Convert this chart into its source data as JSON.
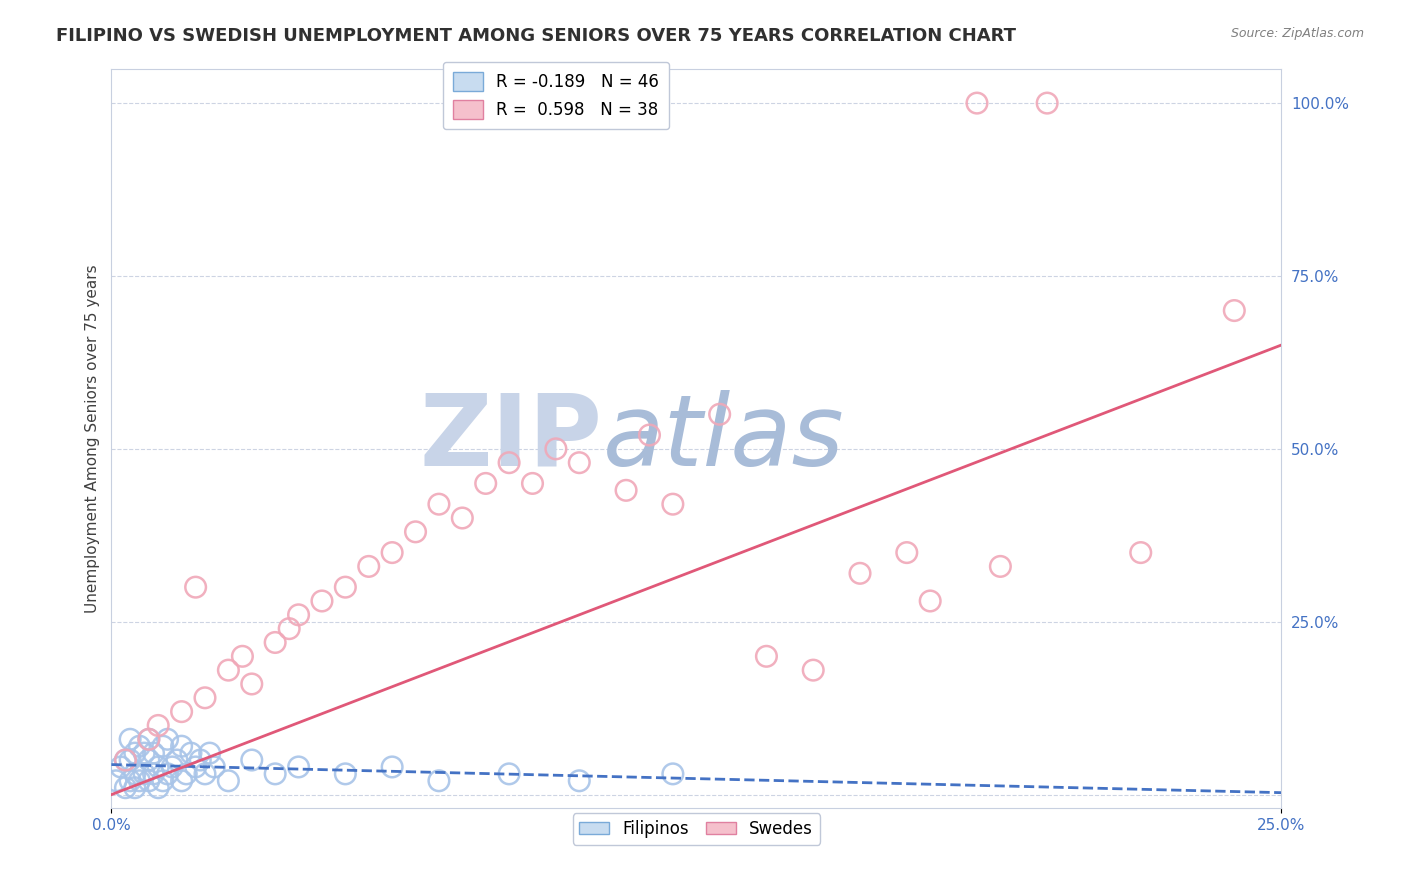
{
  "title": "FILIPINO VS SWEDISH UNEMPLOYMENT AMONG SENIORS OVER 75 YEARS CORRELATION CHART",
  "source": "Source: ZipAtlas.com",
  "ylabel": "Unemployment Among Seniors over 75 years",
  "xlim": [
    0,
    0.25
  ],
  "ylim": [
    -0.02,
    1.05
  ],
  "ytick_values": [
    0,
    0.25,
    0.5,
    0.75,
    1.0
  ],
  "ytick_labels": [
    "",
    "25.0%",
    "50.0%",
    "75.0%",
    "100.0%"
  ],
  "xtick_values": [
    0,
    0.25
  ],
  "xtick_labels": [
    "0.0%",
    "25.0%"
  ],
  "filipinos": {
    "color": "#a8c4e8",
    "line_color": "#4472c4",
    "x": [
      0.001,
      0.002,
      0.003,
      0.003,
      0.004,
      0.004,
      0.004,
      0.005,
      0.005,
      0.005,
      0.006,
      0.006,
      0.007,
      0.007,
      0.008,
      0.008,
      0.008,
      0.009,
      0.009,
      0.01,
      0.01,
      0.011,
      0.011,
      0.012,
      0.012,
      0.013,
      0.014,
      0.015,
      0.015,
      0.016,
      0.017,
      0.018,
      0.019,
      0.02,
      0.021,
      0.022,
      0.025,
      0.03,
      0.035,
      0.04,
      0.05,
      0.06,
      0.07,
      0.085,
      0.1,
      0.12
    ],
    "y": [
      0.02,
      0.04,
      0.01,
      0.05,
      0.02,
      0.05,
      0.08,
      0.01,
      0.03,
      0.06,
      0.02,
      0.07,
      0.03,
      0.06,
      0.02,
      0.05,
      0.08,
      0.03,
      0.06,
      0.01,
      0.04,
      0.02,
      0.07,
      0.03,
      0.08,
      0.04,
      0.05,
      0.02,
      0.07,
      0.03,
      0.06,
      0.04,
      0.05,
      0.03,
      0.06,
      0.04,
      0.02,
      0.05,
      0.03,
      0.04,
      0.03,
      0.04,
      0.02,
      0.03,
      0.02,
      0.03
    ]
  },
  "swedes": {
    "color": "#f0a8b8",
    "line_color": "#e05878",
    "x": [
      0.003,
      0.008,
      0.01,
      0.015,
      0.018,
      0.02,
      0.025,
      0.028,
      0.03,
      0.035,
      0.038,
      0.04,
      0.045,
      0.05,
      0.055,
      0.06,
      0.065,
      0.07,
      0.075,
      0.08,
      0.085,
      0.09,
      0.095,
      0.1,
      0.11,
      0.115,
      0.12,
      0.13,
      0.14,
      0.15,
      0.16,
      0.17,
      0.175,
      0.185,
      0.19,
      0.2,
      0.22,
      0.24
    ],
    "y": [
      0.05,
      0.08,
      0.1,
      0.12,
      0.3,
      0.14,
      0.18,
      0.2,
      0.16,
      0.22,
      0.24,
      0.26,
      0.28,
      0.3,
      0.33,
      0.35,
      0.38,
      0.42,
      0.4,
      0.45,
      0.48,
      0.45,
      0.5,
      0.48,
      0.44,
      0.52,
      0.42,
      0.55,
      0.2,
      0.18,
      0.32,
      0.35,
      0.28,
      1.0,
      0.33,
      1.0,
      0.35,
      0.7
    ]
  },
  "watermark_zip": "ZIP",
  "watermark_atlas": "atlas",
  "watermark_color_zip": "#c8d4e8",
  "watermark_color_atlas": "#a8bcd8",
  "background_color": "#ffffff",
  "grid_color": "#c8d0e0",
  "title_fontsize": 13,
  "axis_label_fontsize": 11,
  "tick_fontsize": 11,
  "legend_fontsize": 12,
  "tick_color": "#4472c4"
}
